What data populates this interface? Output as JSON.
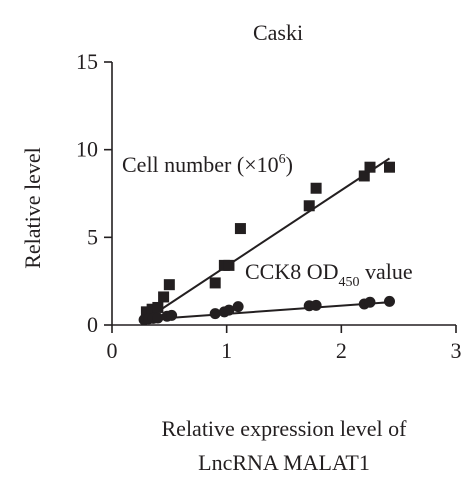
{
  "chart_data": {
    "type": "scatter",
    "title": "Caski",
    "xlabel_line1": "Relative expression level of",
    "xlabel_line2": "LncRNA MALAT1",
    "ylabel": "Relative level",
    "xlim": [
      0,
      3
    ],
    "ylim": [
      0,
      15
    ],
    "x_ticks": [
      0,
      1,
      2,
      3
    ],
    "y_ticks": [
      0,
      5,
      10,
      15
    ],
    "grid": false,
    "series": [
      {
        "label_main": "Cell number (×10",
        "label_sup": "6",
        "label_end": ")",
        "marker": "square",
        "points": [
          [
            0.3,
            0.75
          ],
          [
            0.35,
            0.9
          ],
          [
            0.4,
            1.0
          ],
          [
            0.45,
            1.6
          ],
          [
            0.5,
            2.3
          ],
          [
            0.9,
            2.4
          ],
          [
            0.98,
            3.4
          ],
          [
            1.02,
            3.4
          ],
          [
            1.12,
            5.5
          ],
          [
            1.72,
            6.8
          ],
          [
            1.78,
            7.8
          ],
          [
            2.2,
            8.5
          ],
          [
            2.25,
            9.0
          ],
          [
            2.42,
            9.0
          ]
        ],
        "fit": [
          [
            0.28,
            0.25
          ],
          [
            2.42,
            9.5
          ]
        ]
      },
      {
        "label_main": "CCK8 OD",
        "label_sub": "450",
        "label_end": " value",
        "marker": "circle",
        "points": [
          [
            0.28,
            0.3
          ],
          [
            0.32,
            0.35
          ],
          [
            0.36,
            0.38
          ],
          [
            0.4,
            0.4
          ],
          [
            0.48,
            0.5
          ],
          [
            0.52,
            0.55
          ],
          [
            0.9,
            0.65
          ],
          [
            0.98,
            0.75
          ],
          [
            1.02,
            0.85
          ],
          [
            1.1,
            1.05
          ],
          [
            1.72,
            1.1
          ],
          [
            1.78,
            1.12
          ],
          [
            2.2,
            1.2
          ],
          [
            2.25,
            1.3
          ],
          [
            2.42,
            1.35
          ]
        ],
        "fit": [
          [
            0.28,
            0.3
          ],
          [
            2.42,
            1.3
          ]
        ]
      }
    ]
  }
}
